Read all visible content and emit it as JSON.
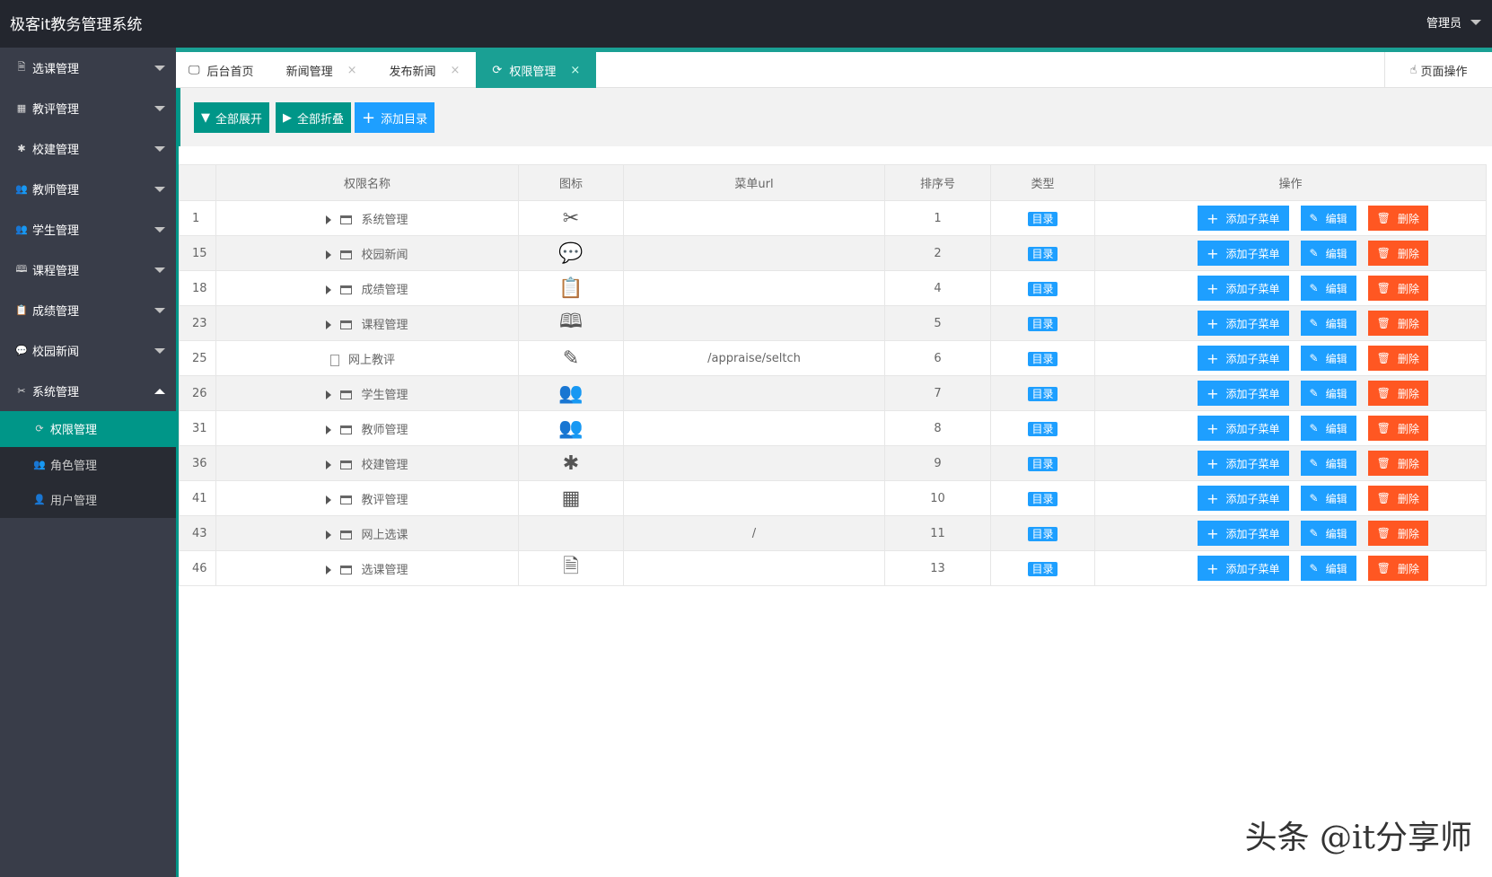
{
  "header": {
    "title": "极客it教务管理系统",
    "user": "管理员"
  },
  "sidebar": {
    "items": [
      {
        "label": "选课管理",
        "icon": "🗎"
      },
      {
        "label": "教评管理",
        "icon": "▦"
      },
      {
        "label": "校建管理",
        "icon": "✱"
      },
      {
        "label": "教师管理",
        "icon": "👥"
      },
      {
        "label": "学生管理",
        "icon": "👥"
      },
      {
        "label": "课程管理",
        "icon": "🕮"
      },
      {
        "label": "成绩管理",
        "icon": "📋"
      },
      {
        "label": "校园新闻",
        "icon": "💬"
      },
      {
        "label": "系统管理",
        "icon": "✂"
      }
    ],
    "children": [
      {
        "label": "权限管理",
        "icon": "⟳"
      },
      {
        "label": "角色管理",
        "icon": "👥"
      },
      {
        "label": "用户管理",
        "icon": "👤"
      }
    ]
  },
  "tabs": [
    {
      "label": "后台首页",
      "icon": "🖵"
    },
    {
      "label": "新闻管理",
      "close": "×"
    },
    {
      "label": "发布新闻",
      "close": "×"
    },
    {
      "label": "权限管理",
      "icon": "⟳",
      "close": "×"
    }
  ],
  "page_op": "页面操作",
  "toolbar": {
    "expand": "全部展开",
    "collapse": "全部折叠",
    "add": "添加目录"
  },
  "table": {
    "headers": [
      "",
      "权限名称",
      "图标",
      "菜单url",
      "排序号",
      "类型",
      "操作"
    ],
    "rows": [
      {
        "id": "1",
        "name": "系统管理",
        "icon": "✂",
        "url": "",
        "sort": "1",
        "type": "目录",
        "leaf": false
      },
      {
        "id": "15",
        "name": "校园新闻",
        "icon": "💬",
        "url": "",
        "sort": "2",
        "type": "目录",
        "leaf": false
      },
      {
        "id": "18",
        "name": "成绩管理",
        "icon": "📋",
        "url": "",
        "sort": "4",
        "type": "目录",
        "leaf": false
      },
      {
        "id": "23",
        "name": "课程管理",
        "icon": "🕮",
        "url": "",
        "sort": "5",
        "type": "目录",
        "leaf": false
      },
      {
        "id": "25",
        "name": "网上教评",
        "icon": "✎",
        "url": "/appraise/seltch",
        "sort": "6",
        "type": "目录",
        "leaf": true
      },
      {
        "id": "26",
        "name": "学生管理",
        "icon": "👥",
        "url": "",
        "sort": "7",
        "type": "目录",
        "leaf": false
      },
      {
        "id": "31",
        "name": "教师管理",
        "icon": "👥",
        "url": "",
        "sort": "8",
        "type": "目录",
        "leaf": false
      },
      {
        "id": "36",
        "name": "校建管理",
        "icon": "✱",
        "url": "",
        "sort": "9",
        "type": "目录",
        "leaf": false
      },
      {
        "id": "41",
        "name": "教评管理",
        "icon": "▦",
        "url": "",
        "sort": "10",
        "type": "目录",
        "leaf": false
      },
      {
        "id": "43",
        "name": "网上选课",
        "icon": "",
        "url": "/",
        "sort": "11",
        "type": "目录",
        "leaf": false
      },
      {
        "id": "46",
        "name": "选课管理",
        "icon": "🗎",
        "url": "",
        "sort": "13",
        "type": "目录",
        "leaf": false
      }
    ],
    "actions": {
      "add": "添加子菜单",
      "edit": "编辑",
      "del": "删除"
    }
  },
  "watermark": "头条 @it分享师"
}
